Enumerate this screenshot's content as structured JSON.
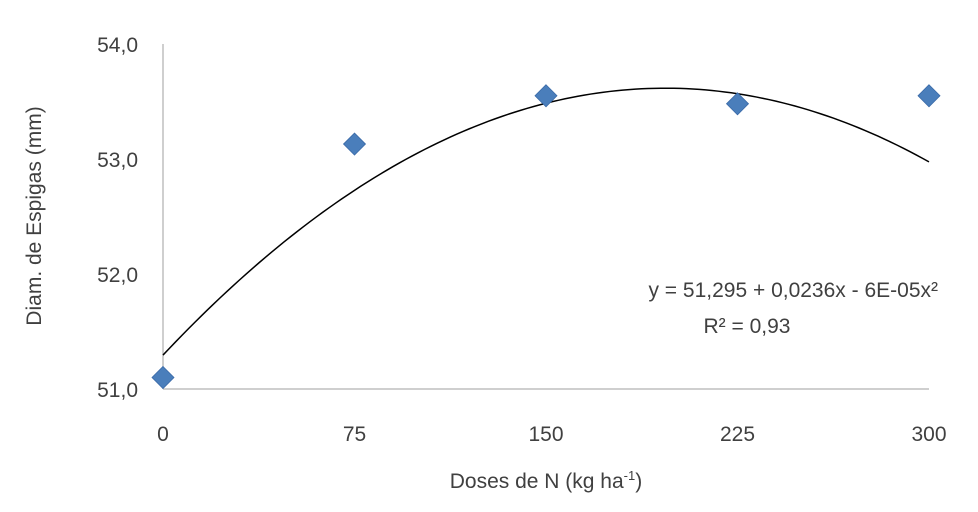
{
  "chart_data": {
    "type": "scatter",
    "title": "",
    "xlabel": "Doses de N (kg ha",
    "xlabel_sup": "-1",
    "xlabel_close": ")",
    "ylabel": "Diam. de Espigas (mm)",
    "x_ticks": [
      "0",
      "75",
      "150",
      "225",
      "300"
    ],
    "y_ticks": [
      "51,0",
      "52,0",
      "53,0",
      "54,0"
    ],
    "xlim": [
      0,
      300
    ],
    "ylim": [
      51.0,
      54.0
    ],
    "grid": false,
    "series": [
      {
        "marker": "diamond",
        "color": "#4a7ebb",
        "points": [
          {
            "x": 0,
            "y": 51.1
          },
          {
            "x": 75,
            "y": 53.13
          },
          {
            "x": 150,
            "y": 53.55
          },
          {
            "x": 225,
            "y": 53.48
          },
          {
            "x": 300,
            "y": 53.55
          }
        ]
      }
    ],
    "trendline": {
      "type": "polynomial",
      "color": "#000000",
      "coefficients": {
        "a": 51.295,
        "b": 0.0236,
        "c": -6e-05
      },
      "equation": "y = 51,295  + 0,0236x  - 6E-05x²",
      "r2": "R² = 0,93"
    }
  }
}
